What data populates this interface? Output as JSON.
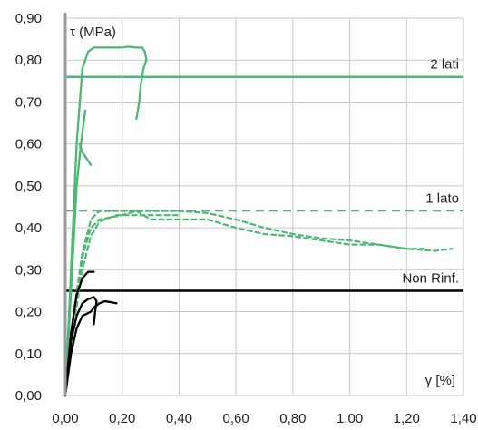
{
  "chart_data": {
    "type": "line",
    "title": "",
    "xlabel": "γ [%]",
    "ylabel": "τ (MPa)",
    "xlim": [
      0,
      1.4
    ],
    "ylim": [
      0,
      0.9
    ],
    "x_ticks": [
      "0,00",
      "0,20",
      "0,40",
      "0,60",
      "0,80",
      "1,00",
      "1,20",
      "1,40"
    ],
    "y_ticks": [
      "0,00",
      "0,10",
      "0,20",
      "0,30",
      "0,40",
      "0,50",
      "0,60",
      "0,70",
      "0,80",
      "0,90"
    ],
    "grid": true,
    "colors": {
      "reinforced": "#4db873",
      "unreinforced": "#000000",
      "axis": "#9a9a9a",
      "grid": "#c8c8c8"
    },
    "reference_lines": [
      {
        "name": "2 lati",
        "y": 0.76,
        "color": "#4db873",
        "style": "solid"
      },
      {
        "name": "1 lato",
        "y": 0.44,
        "color": "#4db873",
        "style": "dashed"
      },
      {
        "name": "Non Rinf.",
        "y": 0.25,
        "color": "#000000",
        "style": "solid"
      }
    ],
    "series": [
      {
        "group": "2 lati",
        "style": "solid",
        "color": "#4db873",
        "points": [
          [
            0,
            0
          ],
          [
            0.02,
            0.3
          ],
          [
            0.04,
            0.6
          ],
          [
            0.06,
            0.78
          ],
          [
            0.08,
            0.82
          ],
          [
            0.1,
            0.83
          ],
          [
            0.16,
            0.83
          ],
          [
            0.2,
            0.83
          ],
          [
            0.22,
            0.832
          ],
          [
            0.25,
            0.83
          ],
          [
            0.27,
            0.83
          ],
          [
            0.28,
            0.82
          ],
          [
            0.285,
            0.8
          ],
          [
            0.275,
            0.78
          ],
          [
            0.265,
            0.74
          ],
          [
            0.26,
            0.7
          ],
          [
            0.25,
            0.66
          ]
        ]
      },
      {
        "group": "2 lati",
        "style": "solid",
        "color": "#4db873",
        "points": [
          [
            0,
            0
          ],
          [
            0.02,
            0.25
          ],
          [
            0.04,
            0.5
          ],
          [
            0.055,
            0.6
          ],
          [
            0.07,
            0.68
          ]
        ]
      },
      {
        "group": "2 lati",
        "style": "solid",
        "color": "#4db873",
        "points": [
          [
            0.05,
            0.6
          ],
          [
            0.06,
            0.58
          ],
          [
            0.075,
            0.565
          ],
          [
            0.09,
            0.55
          ]
        ]
      },
      {
        "group": "1 lato",
        "style": "dashed",
        "color": "#4db873",
        "points": [
          [
            0,
            0
          ],
          [
            0.03,
            0.2
          ],
          [
            0.06,
            0.34
          ],
          [
            0.09,
            0.42
          ],
          [
            0.12,
            0.44
          ],
          [
            0.2,
            0.44
          ],
          [
            0.3,
            0.44
          ],
          [
            0.4,
            0.44
          ],
          [
            0.5,
            0.435
          ],
          [
            0.6,
            0.42
          ],
          [
            0.7,
            0.4
          ],
          [
            0.8,
            0.385
          ],
          [
            0.9,
            0.375
          ],
          [
            1.0,
            0.37
          ],
          [
            1.1,
            0.36
          ],
          [
            1.2,
            0.35
          ],
          [
            1.26,
            0.35
          ]
        ]
      },
      {
        "group": "1 lato",
        "style": "dashed",
        "color": "#4db873",
        "points": [
          [
            0,
            0
          ],
          [
            0.03,
            0.18
          ],
          [
            0.06,
            0.33
          ],
          [
            0.09,
            0.4
          ],
          [
            0.12,
            0.42
          ],
          [
            0.2,
            0.43
          ],
          [
            0.25,
            0.44
          ],
          [
            0.3,
            0.42
          ],
          [
            0.4,
            0.42
          ],
          [
            0.5,
            0.42
          ],
          [
            0.6,
            0.4
          ],
          [
            0.7,
            0.385
          ],
          [
            0.8,
            0.38
          ],
          [
            0.9,
            0.37
          ],
          [
            1.0,
            0.36
          ],
          [
            1.1,
            0.36
          ],
          [
            1.2,
            0.35
          ],
          [
            1.3,
            0.345
          ],
          [
            1.36,
            0.35
          ]
        ]
      },
      {
        "group": "1 lato",
        "style": "dashed",
        "color": "#4db873",
        "points": [
          [
            0,
            0
          ],
          [
            0.03,
            0.17
          ],
          [
            0.06,
            0.3
          ],
          [
            0.09,
            0.38
          ],
          [
            0.12,
            0.415
          ],
          [
            0.18,
            0.43
          ],
          [
            0.3,
            0.43
          ],
          [
            0.4,
            0.43
          ]
        ]
      },
      {
        "group": "Non Rinf.",
        "style": "solid",
        "color": "#000000",
        "points": [
          [
            0,
            0
          ],
          [
            0.02,
            0.15
          ],
          [
            0.04,
            0.24
          ],
          [
            0.06,
            0.28
          ],
          [
            0.08,
            0.295
          ],
          [
            0.1,
            0.295
          ]
        ]
      },
      {
        "group": "Non Rinf.",
        "style": "solid",
        "color": "#000000",
        "points": [
          [
            0,
            0
          ],
          [
            0.02,
            0.13
          ],
          [
            0.04,
            0.19
          ],
          [
            0.06,
            0.22
          ],
          [
            0.08,
            0.23
          ],
          [
            0.1,
            0.235
          ],
          [
            0.11,
            0.225
          ],
          [
            0.105,
            0.2
          ],
          [
            0.1,
            0.17
          ]
        ]
      },
      {
        "group": "Non Rinf.",
        "style": "solid",
        "color": "#000000",
        "points": [
          [
            0,
            0
          ],
          [
            0.02,
            0.1
          ],
          [
            0.04,
            0.16
          ],
          [
            0.06,
            0.19
          ],
          [
            0.09,
            0.2
          ],
          [
            0.1,
            0.21
          ],
          [
            0.12,
            0.22
          ],
          [
            0.14,
            0.225
          ],
          [
            0.18,
            0.22
          ]
        ]
      }
    ]
  }
}
